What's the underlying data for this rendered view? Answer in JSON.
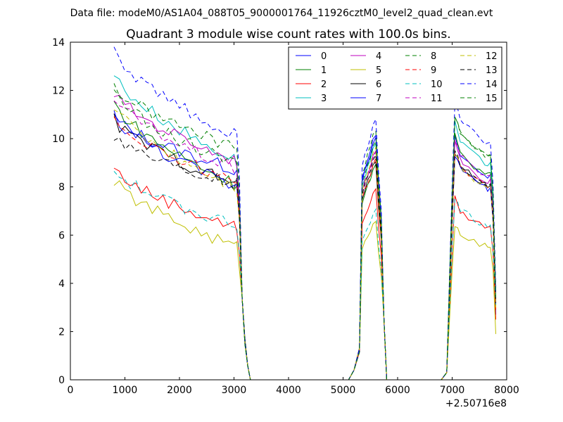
{
  "chart_data": {
    "type": "line",
    "suptitle": "Data file: modeM0/AS1A04_088T05_9000001764_11926cztM0_level2_quad_clean.evt",
    "title": "Quadrant 3 module wise count rates with 100.0s bins.",
    "xlabel": "",
    "ylabel": "",
    "xlim": [
      0,
      8000
    ],
    "ylim": [
      0,
      14
    ],
    "xticks": [
      0,
      1000,
      2000,
      3000,
      4000,
      5000,
      6000,
      7000,
      8000
    ],
    "yticks": [
      0,
      2,
      4,
      6,
      8,
      10,
      12,
      14
    ],
    "x_offset_label": "+2.50716e8",
    "legend_position": "top-right",
    "legend_columns": 4,
    "x": [
      800,
      900,
      1000,
      1100,
      1200,
      1300,
      1400,
      1500,
      1600,
      1700,
      1800,
      1900,
      2000,
      2100,
      2200,
      2300,
      2400,
      2500,
      2600,
      2700,
      2800,
      2900,
      3000,
      3050,
      3100,
      3150,
      3200,
      3250,
      3300,
      3400,
      3500,
      3600,
      3700,
      3800,
      3900,
      4000,
      4100,
      4200,
      4300,
      4400,
      4500,
      4600,
      4700,
      4800,
      4900,
      5000,
      5100,
      5200,
      5300,
      5350,
      5400,
      5450,
      5500,
      5550,
      5600,
      5650,
      5700,
      5750,
      5800,
      5900,
      6000,
      6100,
      6200,
      6300,
      6400,
      6500,
      6600,
      6700,
      6800,
      6900,
      7000,
      7050,
      7100,
      7150,
      7200,
      7300,
      7400,
      7500,
      7600,
      7650,
      7700,
      7750,
      7800
    ],
    "series": [
      {
        "name": "0",
        "color": "#0000ff",
        "dash": "solid",
        "gap_level": 8.7,
        "peak2": 10.0,
        "peak3": 10.0,
        "end": 2.7
      },
      {
        "name": "1",
        "color": "#008000",
        "dash": "solid",
        "gap_level": 8.1,
        "peak2": 8.9,
        "peak3": 10.1,
        "end": 2.9
      },
      {
        "name": "2",
        "color": "#ff0000",
        "dash": "solid",
        "gap_level": 6.3,
        "peak2": 7.9,
        "peak3": 7.5,
        "end": 2.5
      },
      {
        "name": "3",
        "color": "#00bfbf",
        "dash": "solid",
        "gap_level": 9.1,
        "peak2": 9.8,
        "peak3": 10.6,
        "end": 3.6
      },
      {
        "name": "4",
        "color": "#bf00bf",
        "dash": "solid",
        "gap_level": 9.1,
        "peak2": 9.5,
        "peak3": 9.8,
        "end": 3.2
      },
      {
        "name": "5",
        "color": "#bfbf00",
        "dash": "solid",
        "gap_level": 5.5,
        "peak2": 6.6,
        "peak3": 6.5,
        "end": 1.9
      },
      {
        "name": "6",
        "color": "#000000",
        "dash": "solid",
        "gap_level": 8.1,
        "peak2": 9.1,
        "peak3": 9.5,
        "end": 3.1
      },
      {
        "name": "7",
        "color": "#0000ff",
        "dash": "solid",
        "gap_level": 8.0,
        "peak2": 10.2,
        "peak3": 9.4,
        "end": 3.6
      },
      {
        "name": "8",
        "color": "#008000",
        "dash": "dashed",
        "gap_level": 9.6,
        "peak2": 10.4,
        "peak3": 11.0,
        "end": 3.0
      },
      {
        "name": "9",
        "color": "#ff0000",
        "dash": "dashed",
        "gap_level": 8.2,
        "peak2": 9.1,
        "peak3": 9.5,
        "end": 2.9
      },
      {
        "name": "10",
        "color": "#00bfbf",
        "dash": "dashed",
        "gap_level": 6.4,
        "peak2": 7.0,
        "peak3": 7.6,
        "end": 3.0
      },
      {
        "name": "11",
        "color": "#bf00bf",
        "dash": "dashed",
        "gap_level": 8.7,
        "peak2": 9.4,
        "peak3": 10.0,
        "end": 3.1
      },
      {
        "name": "12",
        "color": "#bfbf00",
        "dash": "dashed",
        "gap_level": 8.0,
        "peak2": 9.6,
        "peak3": 9.5,
        "end": 3.0
      },
      {
        "name": "13",
        "color": "#000000",
        "dash": "dashed",
        "gap_level": 8.1,
        "peak2": 9.3,
        "peak3": 9.6,
        "end": 3.2
      },
      {
        "name": "14",
        "color": "#0000ff",
        "dash": "dashed",
        "gap_level": 10.1,
        "peak2": 10.8,
        "peak3": 11.6,
        "end": 3.8
      },
      {
        "name": "15",
        "color": "#008000",
        "dash": "dashed",
        "gap_level": 8.9,
        "peak2": 9.9,
        "peak3": 11.0,
        "end": 3.3
      }
    ],
    "start_values": [
      10.9,
      11.5,
      8.8,
      12.7,
      11.9,
      8.3,
      10.8,
      11.0,
      12.2,
      10.9,
      8.7,
      11.7,
      11.4,
      10.2,
      13.6,
      11.9
    ]
  }
}
